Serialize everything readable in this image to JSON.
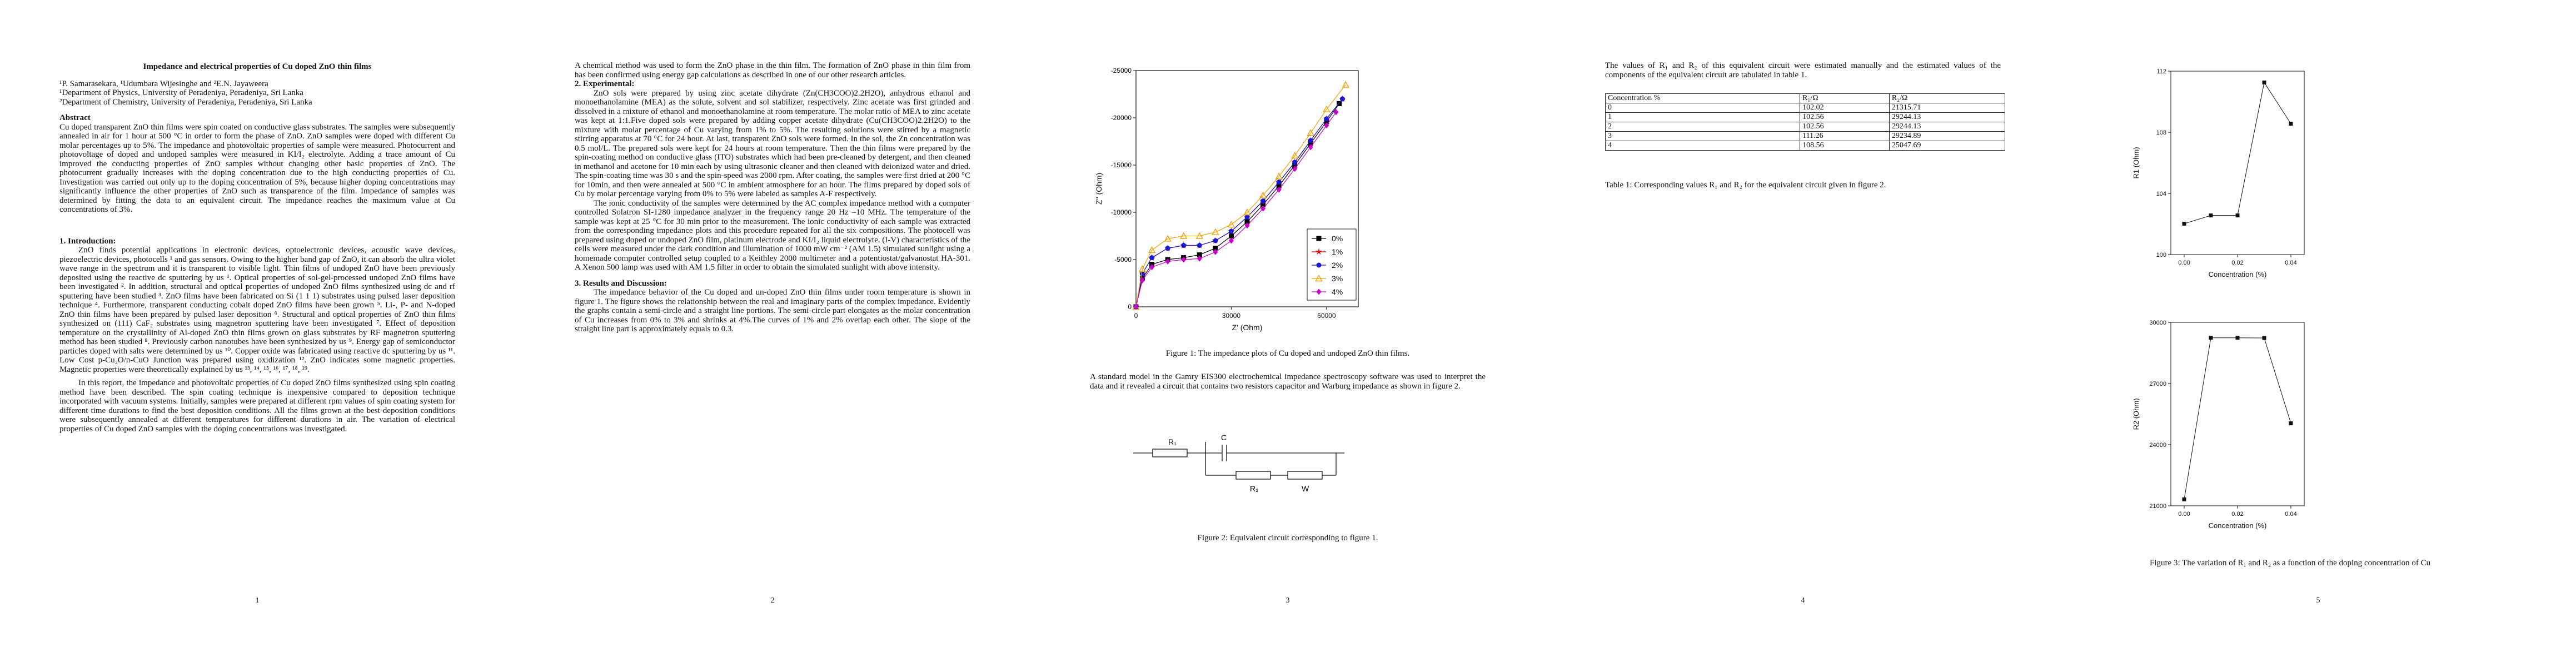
{
  "page1": {
    "title": "Impedance and electrical properties of Cu doped ZnO thin films",
    "authors": "¹P. Samarasekara, ¹Udumbara Wijesinghe and ²E.N. Jayaweera",
    "aff1": "¹Department of Physics, University of Peradeniya, Peradeniya, Sri Lanka",
    "aff2": "²Department of Chemistry, University of Peradeniya, Peradeniya, Sri Lanka",
    "abstract_head": "Abstract",
    "abstract": "Cu doped transparent ZnO thin films were spin coated on conductive glass substrates. The samples were subsequently annealed in air for 1 hour at 500 °C in order to form the phase of ZnO. ZnO samples were doped with different Cu molar percentages up to 5%. The impedance and photovoltaic properties of sample were measured. Photocurrent and photovoltage of doped and undoped samples were measured in KI/I₂ electrolyte. Adding a trace amount of Cu improved the conducting properties of ZnO samples without changing other basic properties of ZnO. The photocurrent gradually increases with the doping concentration due to the high conducting properties of Cu. Investigation was carried out only up to the doping concentration of 5%, because higher doping concentrations may significantly influence the other properties of ZnO such as transparence of the film. Impedance of samples was determined by fitting the data to an equivalent circuit. The impedance reaches the maximum value at Cu concentrations of 3%.",
    "intro_head": "1. Introduction:",
    "intro_p1": "ZnO finds potential applications in electronic devices, optoelectronic devices, acoustic wave devices, piezoelectric devices, photocells ¹ and gas sensors. Owing to the higher band gap of ZnO, it can absorb the ultra violet wave range in the spectrum and it is transparent to visible light. Thin films of undoped ZnO have been previously deposited using the reactive dc sputtering by us ¹. Optical properties of sol-gel-processed undoped ZnO films have been investigated ². In addition, structural and optical properties of undoped ZnO films synthesized using dc and rf sputtering have been studied ³. ZnO films have been fabricated on Si (1 1 1) substrates using pulsed laser deposition technique ⁴. Furthermore, transparent conducting cobalt doped ZnO films have been grown ⁵. Li-, P- and N-doped ZnO thin films have been prepared by pulsed laser deposition ⁶. Structural and optical properties of ZnO thin films synthesized on (111) CaF₂ substrates using magnetron sputtering have been investigated ⁷. Effect of deposition temperature on the crystallinity of Al-doped ZnO thin films grown on glass substrates by RF magnetron sputtering method has been studied ⁸. Previously carbon nanotubes have been synthesized by us ⁹. Energy gap of semiconductor particles doped with salts were determined by us ¹⁰. Copper oxide was fabricated using reactive dc sputtering by us ¹¹. Low Cost p-Cu₂O/n-CuO Junction was prepared using oxidization ¹². ZnO indicates some magnetic properties. Magnetic properties were theoretically explained by us ¹³, ¹⁴, ¹⁵, ¹⁶, ¹⁷, ¹⁸, ¹⁹.",
    "intro_p2": "In this report, the impedance and photovoltaic properties of Cu doped ZnO films synthesized using spin coating method have been described. The spin coating technique is inexpensive compared to deposition technique incorporated with vacuum systems. Initially, samples were prepared at different rpm values of spin coating system for different time durations to find the best deposition conditions. All the films grown at the best deposition conditions were subsequently annealed at different temperatures for different durations in air. The variation of electrical properties of Cu doped ZnO samples with the doping concentrations was investigated.",
    "num": "1"
  },
  "page2": {
    "p1": "A chemical method was used to form the ZnO phase in the thin film. The formation of ZnO phase in thin film from has been confirmed using energy gap calculations as described in one of our other research articles.",
    "exp_head": "2. Experimental:",
    "exp_p1": "ZnO sols were prepared by using zinc acetate dihydrate (Zn(CH3COO)2.2H2O), anhydrous ethanol and monoethanolamine (MEA) as the solute, solvent and sol stabilizer, respectively. Zinc acetate was first grinded and dissolved in a mixture of ethanol and monoethanolamine at room temperature. The molar ratio of MEA to zinc acetate was kept at 1:1.Five doped sols were prepared by adding copper acetate dihydrate (Cu(CH3COO)2.2H2O) to the mixture with molar percentage of Cu varying from 1% to 5%. The resulting solutions were stirred by a magnetic stirring apparatus at 70 °C for 24 hour. At last, transparent ZnO sols were formed. In the sol, the Zn concentration was 0.5 mol/L. The prepared sols were kept for 24 hours at room temperature. Then the thin films were prepared by the spin-coating method on conductive glass (ITO) substrates which had been pre-cleaned by detergent, and then cleaned in methanol and acetone for 10 min each by using ultrasonic cleaner and then cleaned with deionized water and dried. The spin-coating time was 30 s and the spin-speed was 2000 rpm. After coating, the samples were first dried at 200 °C for 10min, and then were annealed at 500 °C in ambient atmosphere for an hour. The films prepared by doped sols of Cu by molar percentage varying from 0% to 5% were labeled as samples A-F respectively.",
    "exp_p2": "The ionic conductivity of the samples were determined by the AC complex impedance method with a computer controlled Solatron SI-1280 impedance analyzer in the frequency range 20 Hz –10 MHz. The temperature of the sample was kept at 25 °C for 30 min prior to the measurement. The ionic conductivity of each sample was extracted from the corresponding impedance plots and this procedure repeated for all the six compositions. The photocell was prepared using doped or undoped ZnO film, platinum electrode and KI/I₂ liquid electrolyte. (I-V) characteristics of the cells were measured under the dark condition and illumination of 1000 mW cm⁻² (AM 1.5) simulated sunlight using a homemade computer controlled setup coupled to a Keithley 2000 multimeter and a potentiostat/galvanostat HA-301. A Xenon 500 lamp was used with AM 1.5 filter in order to obtain the simulated sunlight with above intensity.",
    "res_head": "3. Results and Discussion:",
    "res_p1": "The impedance behavior of the Cu doped and un-doped ZnO thin films under room temperature is shown in figure 1. The figure shows the relationship between the real and imaginary parts of the complex impedance. Evidently the graphs contain a semi-circle and a straight line portions. The semi-circle part elongates as the molar concentration of Cu increases from 0% to 3% and shrinks at 4%.The curves of 1% and 2% overlap each other. The slope of the straight line part is approximately equals to 0.3.",
    "num": "2"
  },
  "page3": {
    "fig1_caption": "Figure 1: The impedance plots of Cu doped and undoped ZnO thin films.",
    "p1": "A standard model in the Gamry EIS300 electrochemical impedance spectroscopy software was used to interpret the data and it revealed a circuit that contains two resistors capacitor and Warburg impedance as shown in figure 2.",
    "fig2_caption": "Figure 2: Equivalent circuit corresponding to figure 1.",
    "circuit": {
      "r1": "R₁",
      "c": "C",
      "r2": "R₂",
      "w": "W"
    },
    "num": "3"
  },
  "page4": {
    "p1": "The values of R₁ and R₂ of this equivalent circuit were estimated manually and the estimated values of the components of the equivalent circuit are tabulated in table 1.",
    "table": {
      "headers": [
        "Concentration %",
        "R₁/Ω",
        "R₂/Ω"
      ],
      "rows": [
        [
          "0",
          "102.02",
          "21315.71"
        ],
        [
          "1",
          "102.56",
          "29244.13"
        ],
        [
          "2",
          "102.56",
          "29244.13"
        ],
        [
          "3",
          "111.26",
          "29234.89"
        ],
        [
          "4",
          "108.56",
          "25047.69"
        ]
      ]
    },
    "table_caption": "Table 1: Corresponding values R₁ and R₂ for the equivalent circuit given in figure 2.",
    "num": "4"
  },
  "page5": {
    "fig3_caption": "Figure 3: The variation of R₁ and R₂ as a function of the doping concentration of Cu",
    "num": "5"
  },
  "chart_data": [
    {
      "type": "line",
      "xlabel": "Z' (Ohm)",
      "ylabel": "Z'' (Ohm)",
      "xlim": [
        0,
        70000
      ],
      "ylim": [
        -25000,
        0
      ],
      "x_ticks": [
        "0",
        "30000",
        "60000"
      ],
      "y_ticks": [
        "-25000",
        "-20000",
        "-15000",
        "-10000",
        "-5000",
        "0"
      ],
      "legend": "right",
      "series": [
        {
          "name": "0%",
          "color": "#000000",
          "marker": "square",
          "x": [
            0,
            2000,
            5000,
            10000,
            15000,
            20000,
            25000,
            30000,
            35000,
            40000,
            45000,
            50000,
            55000,
            60000,
            64000
          ],
          "y": [
            0,
            -3000,
            -4500,
            -5000,
            -5200,
            -5500,
            -6200,
            -7500,
            -9000,
            -10800,
            -12800,
            -15000,
            -17300,
            -19600,
            -21500
          ]
        },
        {
          "name": "1%",
          "color": "#d40000",
          "marker": "star",
          "x": [
            0,
            2000,
            5000,
            10000,
            15000,
            20000,
            25000,
            30000,
            35000,
            40000,
            45000,
            50000,
            55000,
            60000,
            65000
          ],
          "y": [
            0,
            -3500,
            -5200,
            -6200,
            -6500,
            -6500,
            -7000,
            -8000,
            -9500,
            -11200,
            -13200,
            -15300,
            -17600,
            -19900,
            -22000
          ]
        },
        {
          "name": "2%",
          "color": "#1a1ad4",
          "marker": "circle",
          "x": [
            0,
            2000,
            5000,
            10000,
            15000,
            20000,
            25000,
            30000,
            35000,
            40000,
            45000,
            50000,
            55000,
            60000,
            65000
          ],
          "y": [
            0,
            -3500,
            -5200,
            -6200,
            -6500,
            -6500,
            -7000,
            -8000,
            -9500,
            -11200,
            -13200,
            -15300,
            -17600,
            -19900,
            -22000
          ]
        },
        {
          "name": "3%",
          "color": "#f0a000",
          "marker": "triangle",
          "x": [
            0,
            2000,
            5000,
            10000,
            15000,
            20000,
            25000,
            30000,
            35000,
            40000,
            45000,
            50000,
            55000,
            60000,
            66000
          ],
          "y": [
            0,
            -4000,
            -6000,
            -7200,
            -7500,
            -7500,
            -7900,
            -8700,
            -10000,
            -11800,
            -13800,
            -16000,
            -18400,
            -20900,
            -23500
          ]
        },
        {
          "name": "4%",
          "color": "#cc00cc",
          "marker": "diamond",
          "x": [
            0,
            2000,
            5000,
            10000,
            15000,
            20000,
            25000,
            30000,
            35000,
            40000,
            45000,
            50000,
            55000,
            60000,
            63000
          ],
          "y": [
            0,
            -2800,
            -4200,
            -4800,
            -5000,
            -5100,
            -5800,
            -7000,
            -8600,
            -10400,
            -12400,
            -14600,
            -16900,
            -19200,
            -20600
          ]
        }
      ]
    },
    {
      "type": "line",
      "ylabel": "R1 (Ohm)",
      "xlabel": "Concentration (%)",
      "xlim": [
        -0.005,
        0.045
      ],
      "ylim": [
        100,
        112
      ],
      "x_ticks": [
        "0.00",
        "0.02",
        "0.04"
      ],
      "y_ticks": [
        "100",
        "104",
        "108",
        "112"
      ],
      "x": [
        0,
        0.01,
        0.02,
        0.03,
        0.04
      ],
      "y": [
        102.02,
        102.56,
        102.56,
        111.26,
        108.56
      ]
    },
    {
      "type": "line",
      "ylabel": "R2 (Ohm)",
      "xlabel": "Concentration (%)",
      "xlim": [
        -0.005,
        0.045
      ],
      "ylim": [
        21000,
        30000
      ],
      "x_ticks": [
        "0.00",
        "0.02",
        "0.04"
      ],
      "y_ticks": [
        "21000",
        "24000",
        "27000",
        "30000"
      ],
      "x": [
        0,
        0.01,
        0.02,
        0.03,
        0.04
      ],
      "y": [
        21315.71,
        29244.13,
        29244.13,
        29234.89,
        25047.69
      ]
    }
  ]
}
